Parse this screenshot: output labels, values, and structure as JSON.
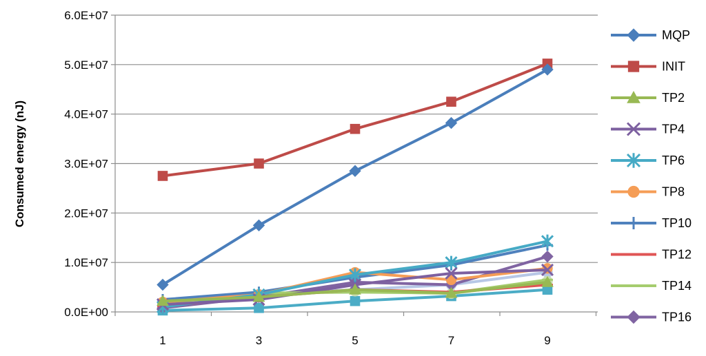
{
  "chart_data": {
    "type": "line",
    "title": "",
    "xlabel": "",
    "ylabel": "Consumed energy (nJ)",
    "x": [
      1,
      3,
      5,
      7,
      9
    ],
    "x_tick_labels": [
      "1",
      "3",
      "5",
      "7",
      "9"
    ],
    "ylim": [
      0,
      60000000
    ],
    "y_ticks": [
      0,
      10000000,
      20000000,
      30000000,
      40000000,
      50000000,
      60000000
    ],
    "y_tick_labels": [
      "0.0E+00",
      "1.0E+07",
      "2.0E+07",
      "3.0E+07",
      "4.0E+07",
      "5.0E+07",
      "6.0E+07"
    ],
    "grid": "horizontal",
    "legend_position": "right",
    "series": [
      {
        "name": "MQP",
        "color": "#4a7ebb",
        "marker": "diamond",
        "values": [
          5500000,
          17500000,
          28500000,
          38200000,
          49000000
        ]
      },
      {
        "name": "INIT",
        "color": "#be4b48",
        "marker": "square",
        "values": [
          27500000,
          30000000,
          37000000,
          42500000,
          50200000
        ]
      },
      {
        "name": "TP2",
        "color": "#98b954",
        "marker": "triangle",
        "values": [
          2200000,
          3000000,
          4500000,
          3800000,
          6000000
        ]
      },
      {
        "name": "TP4",
        "color": "#7d60a0",
        "marker": "x",
        "values": [
          1500000,
          2500000,
          5500000,
          7800000,
          8500000
        ]
      },
      {
        "name": "TP6",
        "color": "#46aac5",
        "marker": "star",
        "values": [
          1000000,
          3500000,
          7500000,
          10000000,
          14300000
        ]
      },
      {
        "name": "TP8",
        "color": "#f59d56",
        "marker": "circle",
        "values": [
          2000000,
          3500000,
          8000000,
          6500000,
          8800000
        ]
      },
      {
        "name": "TP10",
        "color": "#4f81bd",
        "marker": "plus",
        "values": [
          2500000,
          4000000,
          7000000,
          9500000,
          13500000
        ]
      },
      {
        "name": "TP12",
        "color": "#e05555",
        "marker": "dash",
        "values": [
          1200000,
          3000000,
          4500000,
          4000000,
          5500000
        ]
      },
      {
        "name": "TP14",
        "color": "#a5cc6e",
        "marker": "dash",
        "values": [
          1800000,
          3800000,
          4000000,
          3800000,
          6500000
        ]
      },
      {
        "name": "TP16",
        "color": "#8064a2",
        "marker": "diamond",
        "values": [
          800000,
          3000000,
          6000000,
          5500000,
          11200000
        ]
      },
      {
        "name": "",
        "color": "#4bacc6",
        "marker": "square",
        "values": [
          300000,
          800000,
          2200000,
          3200000,
          4500000
        ]
      },
      {
        "name": "",
        "color": "#b7c7e6",
        "marker": "circle",
        "values": [
          1500000,
          3600000,
          4500000,
          5500000,
          8000000
        ]
      },
      {
        "name": "",
        "color": "#c9ddb0",
        "marker": "circle",
        "values": [
          1500000,
          3500000,
          4200000,
          3700000,
          6200000
        ]
      }
    ]
  }
}
